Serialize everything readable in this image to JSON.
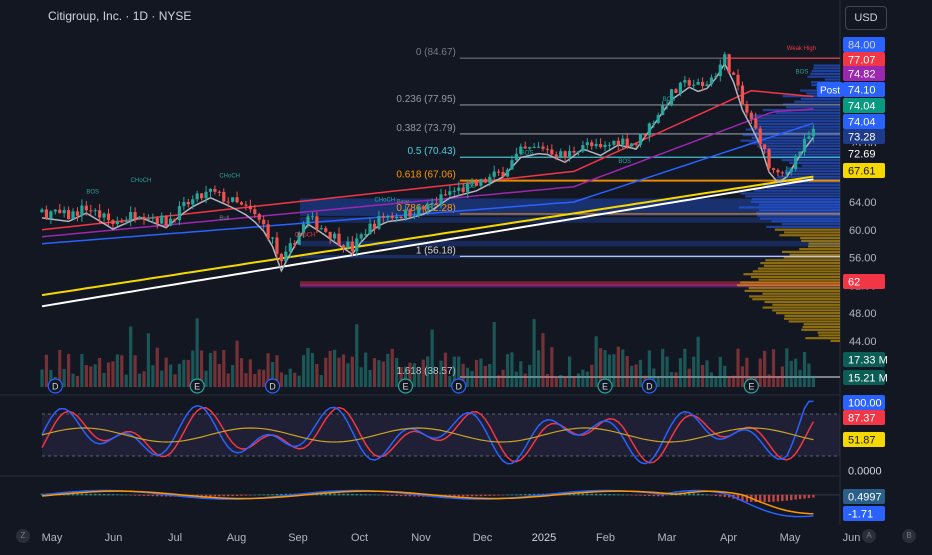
{
  "header": {
    "title": "Citigroup, Inc. · 1D · NYSE",
    "currency": "USD"
  },
  "corners": {
    "left": "Z",
    "auto": "A",
    "right": "B"
  },
  "chart_data": {
    "type": "candlestick",
    "symbol": "C",
    "x_labels": [
      "May",
      "Jun",
      "Jul",
      "Aug",
      "Sep",
      "Oct",
      "Nov",
      "Dec",
      "2025",
      "Feb",
      "Mar",
      "Apr",
      "May",
      "Jun"
    ],
    "price_axis": [
      "84.00",
      "80.00",
      "76.00",
      "72.00",
      "68.00",
      "64.00",
      "60.00",
      "56.00",
      "52.00",
      "48.00",
      "44.00"
    ],
    "price_ylim": [
      43,
      87
    ],
    "price_path": [
      [
        0,
        62.5
      ],
      [
        6,
        62.0
      ],
      [
        10,
        63.2
      ],
      [
        16,
        60.9
      ],
      [
        22,
        62.6
      ],
      [
        28,
        61.1
      ],
      [
        33,
        63.8
      ],
      [
        38,
        65.4
      ],
      [
        43,
        64.0
      ],
      [
        47,
        62.6
      ],
      [
        50,
        60.6
      ],
      [
        52,
        58.4
      ],
      [
        54,
        54.9
      ],
      [
        57,
        58.6
      ],
      [
        60,
        61.6
      ],
      [
        63,
        60.4
      ],
      [
        66,
        59.0
      ],
      [
        70,
        57.3
      ],
      [
        73,
        59.9
      ],
      [
        77,
        61.9
      ],
      [
        82,
        62.3
      ],
      [
        87,
        63.2
      ],
      [
        92,
        65.4
      ],
      [
        98,
        66.4
      ],
      [
        104,
        68.4
      ],
      [
        108,
        71.2
      ],
      [
        113,
        71.9
      ],
      [
        118,
        70.5
      ],
      [
        122,
        72.4
      ],
      [
        126,
        71.5
      ],
      [
        130,
        73.0
      ],
      [
        134,
        72.4
      ],
      [
        138,
        75.9
      ],
      [
        142,
        79.5
      ],
      [
        146,
        81.3
      ],
      [
        149,
        80.4
      ],
      [
        152,
        82.6
      ],
      [
        154,
        84.7
      ],
      [
        156,
        82.0
      ],
      [
        158,
        78.0
      ],
      [
        160,
        75.6
      ],
      [
        162,
        73.0
      ],
      [
        164,
        69.1
      ],
      [
        166,
        67.6
      ],
      [
        168,
        68.4
      ],
      [
        170,
        70.5
      ],
      [
        172,
        72.4
      ],
      [
        174,
        74.1
      ]
    ],
    "price_labels": [
      {
        "value": "84.00",
        "color": "#2962ff",
        "text_color": "#d1d4dc"
      },
      {
        "value": "77.07",
        "color": "#f23645",
        "text_color": "#ffffff"
      },
      {
        "value": "74.82",
        "color": "#9c27b0",
        "text_color": "#ffffff"
      },
      {
        "value": "74.10",
        "color": "#2962ff",
        "text_color": "#ffffff",
        "tag": "Post"
      },
      {
        "value": "74.04",
        "color": "#089981",
        "text_color": "#ffffff"
      },
      {
        "value": "74.04",
        "color": "#2962ff",
        "text_color": "#ffffff"
      },
      {
        "value": "73.28",
        "color": "#1e3a8a",
        "text_color": "#ffffff"
      },
      {
        "value": "72.69",
        "color": "#131722",
        "text_color": "#ffffff"
      },
      {
        "value": "67.61",
        "color": "#f5d800",
        "text_color": "#131722"
      },
      {
        "value": "62",
        "color": "#f23645",
        "text_color": "#ffffff"
      },
      {
        "value": "17.33 M",
        "color": "#0b5e56",
        "text_color": "#ffffff"
      },
      {
        "value": "15.21 M",
        "color": "#0b5e56",
        "text_color": "#ffffff"
      },
      {
        "value": "100.00",
        "color": "#2962ff",
        "text_color": "#ffffff"
      },
      {
        "value": "87.37",
        "color": "#f23645",
        "text_color": "#ffffff"
      },
      {
        "value": "51.87",
        "color": "#f5d800",
        "text_color": "#131722"
      },
      {
        "value": "0.0000",
        "color": "#131722",
        "text_color": "#d1d4dc"
      },
      {
        "value": "0.4997",
        "color": "#2a5f8a",
        "text_color": "#ffffff"
      },
      {
        "value": "-1.71",
        "color": "#2962ff",
        "text_color": "#ffffff"
      }
    ],
    "fib_levels": [
      {
        "label": "0 (84.67)",
        "price": 84.67,
        "color": "#787b86"
      },
      {
        "label": "0.236 (77.95)",
        "price": 77.95,
        "color": "#9598a1"
      },
      {
        "label": "0.382 (73.79)",
        "price": 73.79,
        "color": "#9598a1"
      },
      {
        "label": "0.5 (70.43)",
        "price": 70.43,
        "color": "#4dd0e1"
      },
      {
        "label": "0.618 (67.06)",
        "price": 67.06,
        "color": "#ff9800"
      },
      {
        "label": "0.786 (62.28)",
        "price": 62.28,
        "color": "#ff9800"
      },
      {
        "label": "1 (56.18)",
        "price": 56.18,
        "color": "#d1d4dc"
      },
      {
        "label": "1.618 (38.57)",
        "price": 38.57,
        "color": "#d1d4dc"
      }
    ],
    "annotations": [
      {
        "text": "Weak High",
        "color": "#f23645"
      },
      {
        "text": "BOS",
        "color": "#26a69a"
      },
      {
        "text": "CHoCH",
        "color": "#26a69a"
      },
      {
        "text": "CHoCH",
        "color": "#f23645"
      },
      {
        "text": "Bear",
        "color": "#787b86"
      },
      {
        "text": "Bull",
        "color": "#787b86"
      }
    ],
    "events": [
      "D",
      "E",
      "D",
      "E",
      "D",
      "E",
      "D",
      "E"
    ],
    "stoch_ylim": [
      0,
      100
    ],
    "macd_ylim": [
      -2.2,
      1.2
    ]
  }
}
